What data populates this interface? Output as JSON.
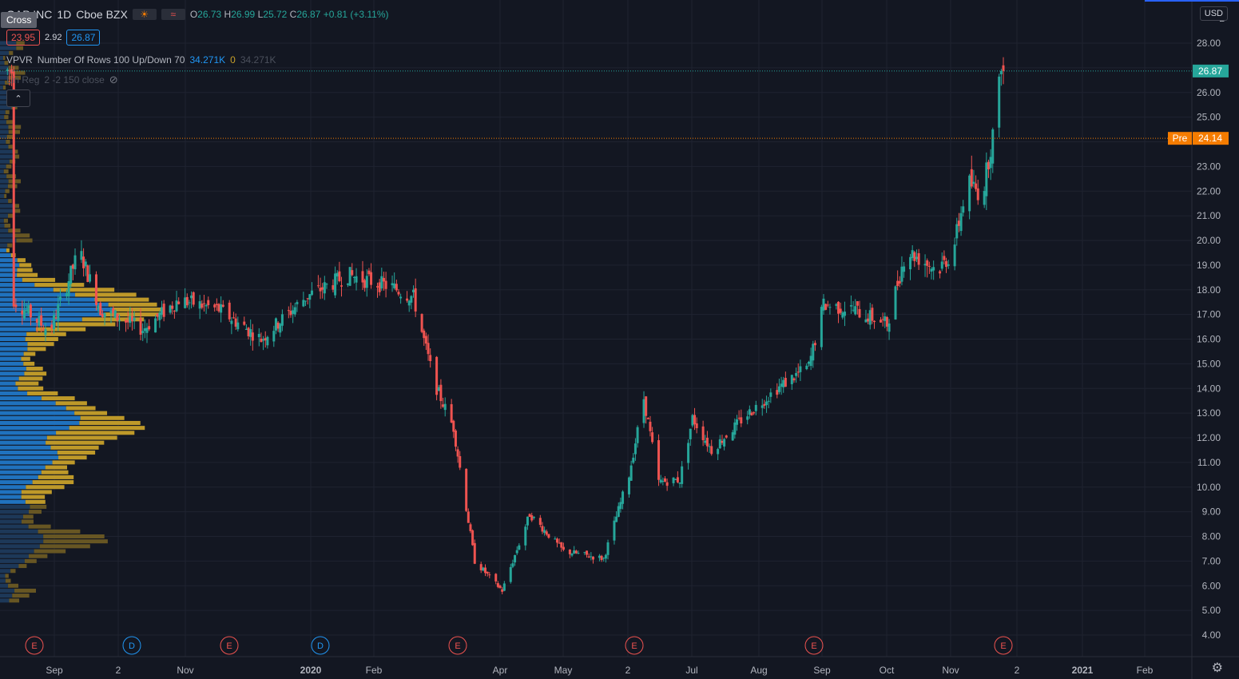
{
  "header": {
    "symbol": "GAP INC",
    "interval": "1D",
    "exchange": "Cboe BZX",
    "ohlc": {
      "o_label": "O",
      "o": "26.73",
      "h_label": "H",
      "h": "26.99",
      "l_label": "L",
      "l": "25.72",
      "c_label": "C",
      "c": "26.87",
      "change": "+0.81 (+3.11%)"
    },
    "bid": "23.95",
    "spread": "2.92",
    "ask": "26.87",
    "crosshair_tooltip": "Cross"
  },
  "indicators": {
    "vpvr": {
      "name": "VPVR",
      "params": "Number Of Rows 100 Up/Down 70",
      "value_up": "34.271K",
      "value_mid": "0",
      "value_down": "34.271K"
    },
    "linreg": {
      "name": "Lin Reg",
      "params": "2 -2 150 close"
    }
  },
  "price_axis": {
    "currency": "USD",
    "top_label": "2",
    "last_price_label": "26.87",
    "premarket_tag": "Pre",
    "premarket_price": "24.14"
  },
  "colors": {
    "background": "#131722",
    "up": "#26a69a",
    "down": "#ef5350",
    "vp_blue": "#2177c7",
    "vp_gold": "#c7a02a",
    "last_price_tag": "#26a69a",
    "premarket_tag": "#f57c00"
  },
  "chart_data": {
    "type": "candlestick",
    "y_ticks": [
      "28.00",
      "27.00",
      "26.00",
      "25.00",
      "24.00",
      "23.00",
      "22.00",
      "21.00",
      "20.00",
      "19.00",
      "18.00",
      "17.00",
      "16.00",
      "15.00",
      "14.00",
      "13.00",
      "12.00",
      "11.00",
      "10.00",
      "9.00",
      "8.00",
      "7.00",
      "6.00",
      "5.00",
      "4.00"
    ],
    "ylim": [
      3.6,
      29.2
    ],
    "x_ticks": [
      "Sep",
      "2",
      "Nov",
      "2020",
      "Feb",
      "Apr",
      "May",
      "2",
      "Jul",
      "Aug",
      "Sep",
      "Oct",
      "Nov",
      "2",
      "2021",
      "Feb"
    ],
    "event_markers": [
      "E",
      "D",
      "E",
      "D",
      "E",
      "E",
      "E",
      "E"
    ],
    "price_path": [
      [
        "2019-08-15",
        17.6
      ],
      [
        "2019-09-01",
        16.3
      ],
      [
        "2019-09-15",
        19.6
      ],
      [
        "2019-09-25",
        17.2
      ],
      [
        "2019-10-15",
        16.4
      ],
      [
        "2019-11-01",
        17.6
      ],
      [
        "2019-11-20",
        17.2
      ],
      [
        "2019-12-10",
        16.0
      ],
      [
        "2019-12-31",
        17.7
      ],
      [
        "2020-01-20",
        18.6
      ],
      [
        "2020-02-10",
        18.1
      ],
      [
        "2020-02-20",
        17.7
      ],
      [
        "2020-03-01",
        14.2
      ],
      [
        "2020-03-10",
        12.4
      ],
      [
        "2020-03-20",
        7.0
      ],
      [
        "2020-04-02",
        5.8
      ],
      [
        "2020-04-15",
        8.9
      ],
      [
        "2020-05-01",
        7.4
      ],
      [
        "2020-05-20",
        7.1
      ],
      [
        "2020-06-01",
        10.5
      ],
      [
        "2020-06-08",
        13.6
      ],
      [
        "2020-06-15",
        10.2
      ],
      [
        "2020-06-25",
        10.3
      ],
      [
        "2020-07-01",
        12.8
      ],
      [
        "2020-07-10",
        11.5
      ],
      [
        "2020-07-25",
        12.8
      ],
      [
        "2020-08-10",
        14.0
      ],
      [
        "2020-08-25",
        14.9
      ],
      [
        "2020-09-01",
        17.4
      ],
      [
        "2020-09-15",
        17.2
      ],
      [
        "2020-10-01",
        16.6
      ],
      [
        "2020-10-10",
        19.6
      ],
      [
        "2020-10-25",
        18.8
      ],
      [
        "2020-11-01",
        19.5
      ],
      [
        "2020-11-08",
        22.4
      ],
      [
        "2020-11-15",
        21.8
      ],
      [
        "2020-11-20",
        24.3
      ],
      [
        "2020-11-24",
        26.87
      ]
    ],
    "volume_profile_center": 14.0
  }
}
